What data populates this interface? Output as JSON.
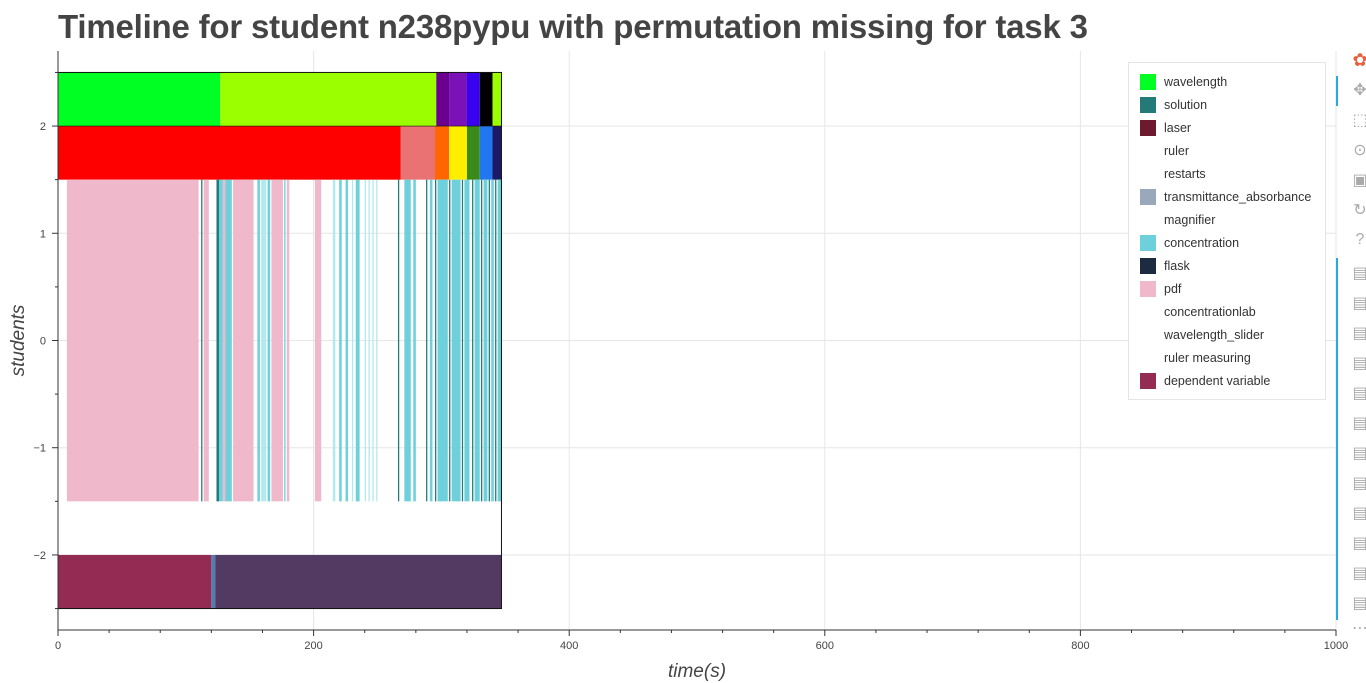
{
  "chart_data": {
    "type": "timeline",
    "title": "Timeline for student n238pypu with permutation missing for task 3",
    "xlabel": "time(s)",
    "ylabel": "students",
    "xlim": [
      0,
      1000
    ],
    "ylim": [
      -2.7,
      2.7
    ],
    "xticks": [
      0,
      200,
      400,
      600,
      800,
      1000
    ],
    "yticks": [
      -2,
      -1,
      0,
      1,
      2
    ],
    "grid": true,
    "legend_position": "top-right",
    "legend": [
      {
        "label": "wavelength",
        "color": "#00ff22"
      },
      {
        "label": "solution",
        "color": "#237a78"
      },
      {
        "label": "laser",
        "color": "#6e1a2e"
      },
      {
        "label": "ruler",
        "color": "#ffffff"
      },
      {
        "label": "restarts",
        "color": "#ffffff"
      },
      {
        "label": "transmittance_absorbance",
        "color": "#9aa8bb"
      },
      {
        "label": "magnifier",
        "color": "#ffffff"
      },
      {
        "label": "concentration",
        "color": "#6dd0da"
      },
      {
        "label": "flask",
        "color": "#1c2b40"
      },
      {
        "label": "pdf",
        "color": "#f0b8cb"
      },
      {
        "label": "concentrationlab",
        "color": "#ffffff"
      },
      {
        "label": "wavelength_slider",
        "color": "#ffffff"
      },
      {
        "label": "ruler measuring",
        "color": "#ffffff"
      },
      {
        "label": "dependent variable",
        "color": "#942b52"
      }
    ],
    "rows": [
      {
        "y0": 2.0,
        "y1": 2.5,
        "segments": [
          {
            "start": 0,
            "end": 127,
            "color": "#00ff22"
          },
          {
            "start": 127,
            "end": 296,
            "color": "#9cff00"
          },
          {
            "start": 296,
            "end": 306,
            "color": "#6b008f"
          },
          {
            "start": 306,
            "end": 320,
            "color": "#7a12b8"
          },
          {
            "start": 320,
            "end": 330,
            "color": "#3800ee"
          },
          {
            "start": 330,
            "end": 340,
            "color": "#000000"
          },
          {
            "start": 340,
            "end": 347,
            "color": "#9cff00"
          }
        ]
      },
      {
        "y0": 1.5,
        "y1": 2.0,
        "segments": [
          {
            "start": 0,
            "end": 268,
            "color": "#ff0000"
          },
          {
            "start": 268,
            "end": 295,
            "color": "#ea7272"
          },
          {
            "start": 295,
            "end": 306,
            "color": "#ff6600"
          },
          {
            "start": 306,
            "end": 320,
            "color": "#ffee00"
          },
          {
            "start": 320,
            "end": 330,
            "color": "#3a8a1a"
          },
          {
            "start": 330,
            "end": 340,
            "color": "#2277ee"
          },
          {
            "start": 340,
            "end": 347,
            "color": "#1a1a66"
          }
        ]
      },
      {
        "y0": -1.5,
        "y1": 1.5,
        "segments": [
          {
            "start": 7,
            "end": 110,
            "color": "#f0b8cb"
          },
          {
            "start": 112,
            "end": 113,
            "color": "#237a78"
          },
          {
            "start": 114,
            "end": 118,
            "color": "#f0b8cb"
          },
          {
            "start": 124,
            "end": 126,
            "color": "#237a78"
          },
          {
            "start": 126,
            "end": 129,
            "color": "#6dd0da"
          },
          {
            "start": 129,
            "end": 131,
            "color": "#f0b8cb"
          },
          {
            "start": 131,
            "end": 136,
            "color": "#6dd0da"
          },
          {
            "start": 137,
            "end": 153,
            "color": "#f0b8cb"
          },
          {
            "start": 156,
            "end": 158,
            "color": "#6dd0da"
          },
          {
            "start": 159,
            "end": 163,
            "color": "#b3e8ed"
          },
          {
            "start": 164,
            "end": 166,
            "color": "#6dd0da"
          },
          {
            "start": 167,
            "end": 176,
            "color": "#f0b8cb"
          },
          {
            "start": 177,
            "end": 178,
            "color": "#6dd0da"
          },
          {
            "start": 179,
            "end": 181,
            "color": "#f0b8cb"
          },
          {
            "start": 201,
            "end": 206,
            "color": "#f0b8cb"
          },
          {
            "start": 215,
            "end": 217,
            "color": "#b3e8ed"
          },
          {
            "start": 220,
            "end": 222,
            "color": "#6dd0da"
          },
          {
            "start": 225,
            "end": 227,
            "color": "#6dd0da"
          },
          {
            "start": 230,
            "end": 231,
            "color": "#b3e8ed"
          },
          {
            "start": 233,
            "end": 236,
            "color": "#6dd0da"
          },
          {
            "start": 240,
            "end": 241,
            "color": "#b3e8ed"
          },
          {
            "start": 243,
            "end": 244,
            "color": "#b3e8ed"
          },
          {
            "start": 246,
            "end": 247,
            "color": "#b3e8ed"
          },
          {
            "start": 249,
            "end": 250,
            "color": "#b3e8ed"
          },
          {
            "start": 266,
            "end": 267,
            "color": "#237a78"
          },
          {
            "start": 271,
            "end": 276,
            "color": "#6dd0da"
          },
          {
            "start": 278,
            "end": 280,
            "color": "#6dd0da"
          },
          {
            "start": 288,
            "end": 289,
            "color": "#237a78"
          },
          {
            "start": 291,
            "end": 293,
            "color": "#6dd0da"
          },
          {
            "start": 295,
            "end": 296,
            "color": "#237a78"
          },
          {
            "start": 297,
            "end": 305,
            "color": "#6dd0da"
          },
          {
            "start": 306,
            "end": 307,
            "color": "#237a78"
          },
          {
            "start": 308,
            "end": 315,
            "color": "#6dd0da"
          },
          {
            "start": 316,
            "end": 317,
            "color": "#237a78"
          },
          {
            "start": 318,
            "end": 322,
            "color": "#6dd0da"
          },
          {
            "start": 324,
            "end": 325,
            "color": "#237a78"
          },
          {
            "start": 326,
            "end": 330,
            "color": "#6dd0da"
          },
          {
            "start": 331,
            "end": 332,
            "color": "#237a78"
          },
          {
            "start": 333,
            "end": 336,
            "color": "#6dd0da"
          },
          {
            "start": 337,
            "end": 338,
            "color": "#237a78"
          },
          {
            "start": 339,
            "end": 341,
            "color": "#6dd0da"
          },
          {
            "start": 342,
            "end": 343,
            "color": "#237a78"
          },
          {
            "start": 344,
            "end": 347,
            "color": "#6dd0da"
          }
        ]
      },
      {
        "y0": -2.5,
        "y1": -2.0,
        "segments": [
          {
            "start": 0,
            "end": 120,
            "color": "#942b52"
          },
          {
            "start": 120,
            "end": 123,
            "color": "#4f7fae"
          },
          {
            "start": 123,
            "end": 347,
            "color": "#533a63"
          }
        ]
      }
    ],
    "outline": {
      "start": 0,
      "end": 347,
      "y0": -2.5,
      "y1": 2.5
    }
  },
  "toolbar": {
    "items": [
      {
        "name": "bokeh-logo-icon",
        "glyph": "✿"
      },
      {
        "name": "pan-icon",
        "glyph": "✥"
      },
      {
        "name": "box-zoom-icon",
        "glyph": "⬚"
      },
      {
        "name": "wheel-zoom-icon",
        "glyph": "⊙"
      },
      {
        "name": "save-icon",
        "glyph": "▣"
      },
      {
        "name": "reset-icon",
        "glyph": "↻"
      },
      {
        "name": "help-icon",
        "glyph": "?"
      },
      {
        "name": "hover-icon",
        "glyph": "▤"
      },
      {
        "name": "hover-icon",
        "glyph": "▤"
      },
      {
        "name": "hover-icon",
        "glyph": "▤"
      },
      {
        "name": "hover-icon",
        "glyph": "▤"
      },
      {
        "name": "hover-icon",
        "glyph": "▤"
      },
      {
        "name": "hover-icon",
        "glyph": "▤"
      },
      {
        "name": "hover-icon",
        "glyph": "▤"
      },
      {
        "name": "hover-icon",
        "glyph": "▤"
      },
      {
        "name": "hover-icon",
        "glyph": "▤"
      },
      {
        "name": "hover-icon",
        "glyph": "▤"
      },
      {
        "name": "hover-icon",
        "glyph": "▤"
      },
      {
        "name": "hover-icon",
        "glyph": "▤"
      },
      {
        "name": "more-icon",
        "glyph": "⋯"
      }
    ]
  }
}
